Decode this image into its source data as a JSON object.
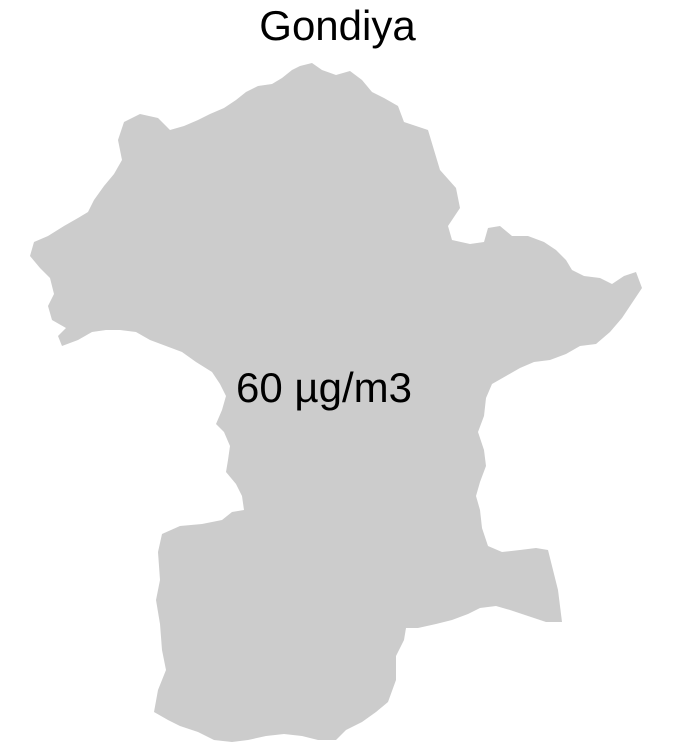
{
  "map": {
    "title": "Gondiya",
    "region_label": "60 µg/m3",
    "fill_color": "#cccccc",
    "background_color": "#ffffff"
  }
}
